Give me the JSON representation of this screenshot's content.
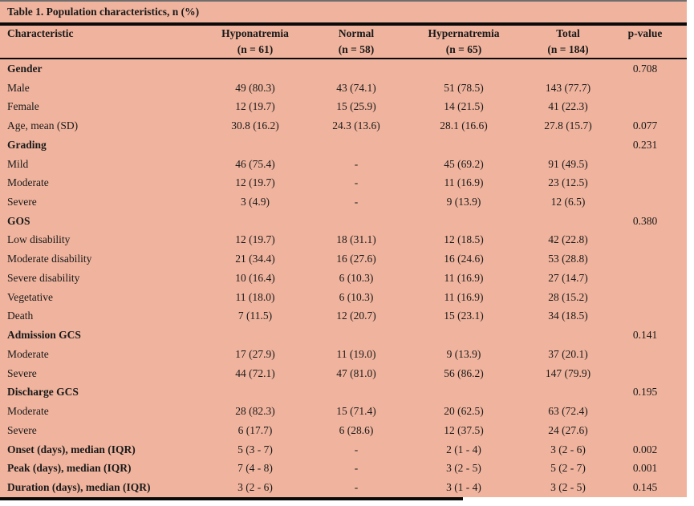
{
  "title": "Table 1. Population characteristics, n (%)",
  "columns": {
    "characteristic": "Characteristic",
    "groups": [
      {
        "label": "Hyponatremia",
        "n": "(n = 61)"
      },
      {
        "label": "Normal",
        "n": "(n = 58)"
      },
      {
        "label": "Hypernatremia",
        "n": "(n = 65)"
      },
      {
        "label": "Total",
        "n": "(n = 184)"
      }
    ],
    "pvalue": "p-value"
  },
  "rows": [
    {
      "label": "Gender",
      "bold": true,
      "values": [
        "",
        "",
        "",
        ""
      ],
      "p": "0.708"
    },
    {
      "label": "Male",
      "bold": false,
      "values": [
        "49 (80.3)",
        "43 (74.1)",
        "51 (78.5)",
        "143 (77.7)"
      ],
      "p": ""
    },
    {
      "label": "Female",
      "bold": false,
      "values": [
        "12 (19.7)",
        "15 (25.9)",
        "14 (21.5)",
        "41 (22.3)"
      ],
      "p": ""
    },
    {
      "label": "Age, mean (SD)",
      "bold": false,
      "values": [
        "30.8 (16.2)",
        "24.3 (13.6)",
        "28.1 (16.6)",
        "27.8 (15.7)"
      ],
      "p": "0.077"
    },
    {
      "label": "Grading",
      "bold": true,
      "values": [
        "",
        "",
        "",
        ""
      ],
      "p": "0.231"
    },
    {
      "label": "Mild",
      "bold": false,
      "values": [
        "46 (75.4)",
        "-",
        "45 (69.2)",
        "91 (49.5)"
      ],
      "p": ""
    },
    {
      "label": "Moderate",
      "bold": false,
      "values": [
        "12 (19.7)",
        "-",
        "11 (16.9)",
        "23 (12.5)"
      ],
      "p": ""
    },
    {
      "label": "Severe",
      "bold": false,
      "values": [
        "3 (4.9)",
        "-",
        "9 (13.9)",
        "12 (6.5)"
      ],
      "p": ""
    },
    {
      "label": "GOS",
      "bold": true,
      "values": [
        "",
        "",
        "",
        ""
      ],
      "p": "0.380"
    },
    {
      "label": "Low disability",
      "bold": false,
      "values": [
        "12 (19.7)",
        "18 (31.1)",
        "12 (18.5)",
        "42 (22.8)"
      ],
      "p": ""
    },
    {
      "label": "Moderate disability",
      "bold": false,
      "values": [
        "21 (34.4)",
        "16 (27.6)",
        "16 (24.6)",
        "53 (28.8)"
      ],
      "p": ""
    },
    {
      "label": "Severe disability",
      "bold": false,
      "values": [
        "10 (16.4)",
        "6 (10.3)",
        "11 (16.9)",
        "27 (14.7)"
      ],
      "p": ""
    },
    {
      "label": "Vegetative",
      "bold": false,
      "values": [
        "11 (18.0)",
        "6 (10.3)",
        "11 (16.9)",
        "28 (15.2)"
      ],
      "p": ""
    },
    {
      "label": "Death",
      "bold": false,
      "values": [
        "7 (11.5)",
        "12 (20.7)",
        "15 (23.1)",
        "34 (18.5)"
      ],
      "p": ""
    },
    {
      "label": "Admission GCS",
      "bold": true,
      "values": [
        "",
        "",
        "",
        ""
      ],
      "p": "0.141"
    },
    {
      "label": "Moderate",
      "bold": false,
      "values": [
        "17 (27.9)",
        "11 (19.0)",
        "9 (13.9)",
        "37 (20.1)"
      ],
      "p": ""
    },
    {
      "label": "Severe",
      "bold": false,
      "values": [
        "44 (72.1)",
        "47 (81.0)",
        "56 (86.2)",
        "147 (79.9)"
      ],
      "p": ""
    },
    {
      "label": "Discharge GCS",
      "bold": true,
      "values": [
        "",
        "",
        "",
        ""
      ],
      "p": "0.195"
    },
    {
      "label": "Moderate",
      "bold": false,
      "values": [
        "28 (82.3)",
        "15 (71.4)",
        "20 (62.5)",
        "63 (72.4)"
      ],
      "p": ""
    },
    {
      "label": "Severe",
      "bold": false,
      "values": [
        "6 (17.7)",
        "6 (28.6)",
        "12 (37.5)",
        "24 (27.6)"
      ],
      "p": ""
    },
    {
      "label": "Onset (days), median (IQR)",
      "bold": true,
      "values": [
        "5 (3 - 7)",
        "-",
        "2 (1 - 4)",
        "3 (2 - 6)"
      ],
      "p": "0.002"
    },
    {
      "label": "Peak (days), median (IQR)",
      "bold": true,
      "values": [
        "7 (4 - 8)",
        "-",
        "3 (2 - 5)",
        "5 (2 - 7)"
      ],
      "p": "0.001"
    },
    {
      "label": "Duration (days), median (IQR)",
      "bold": true,
      "values": [
        "3 (2 - 6)",
        "-",
        "3 (1 - 4)",
        "3 (2 - 5)"
      ],
      "p": "0.145"
    }
  ],
  "colors": {
    "table_background": "#f0b49e",
    "rule": "#0a0a0a",
    "text": "#1a1a1a"
  }
}
